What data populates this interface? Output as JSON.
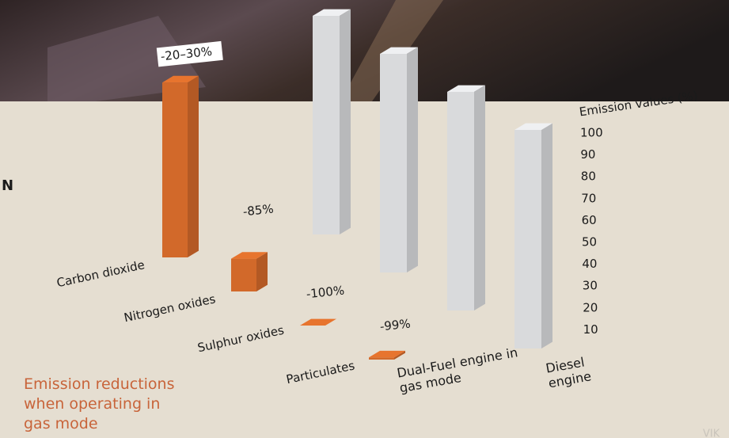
{
  "chart_data": {
    "type": "bar3d",
    "categories": [
      "Carbon dioxide",
      "Nitrogen oxides",
      "Sulphur oxides",
      "Particulates"
    ],
    "series": [
      {
        "name": "Dual-Fuel engine in gas mode",
        "color": "#d2692a",
        "values": [
          80,
          15,
          0,
          1
        ]
      },
      {
        "name": "Diesel engine",
        "color": "#d9dadc",
        "values": [
          100,
          100,
          100,
          100
        ]
      }
    ],
    "annotations": [
      "-20–30%",
      "-85%",
      "-100%",
      "-99%"
    ],
    "ylabel": "Emission values (%)",
    "ylim": [
      0,
      100
    ],
    "yticks": [
      10,
      20,
      30,
      40,
      50,
      60,
      70,
      80,
      90,
      100
    ],
    "caption": "Emission reductions when operating in gas mode"
  },
  "fragments": [
    "N",
    "VIK"
  ]
}
